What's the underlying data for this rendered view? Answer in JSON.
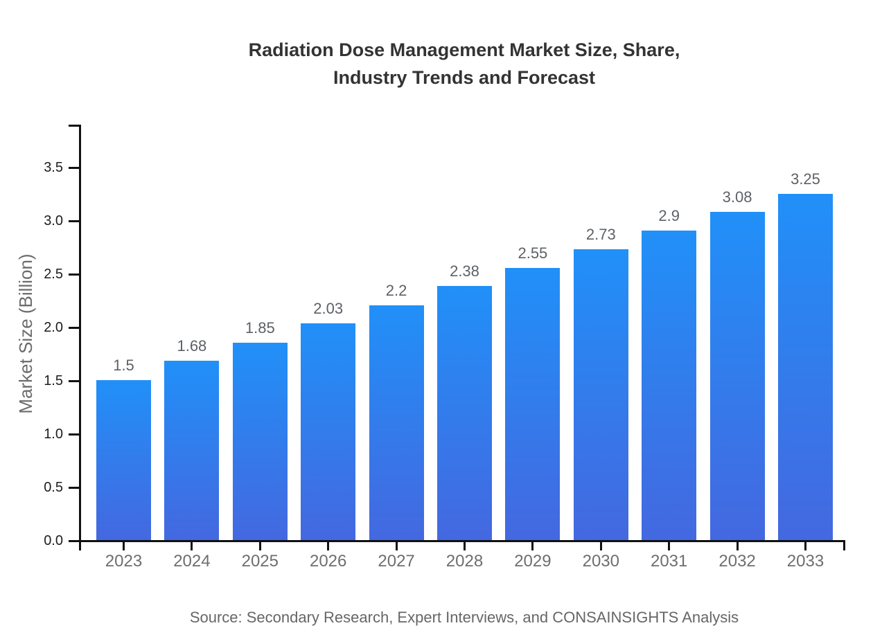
{
  "header": {
    "title_line1": "Radiation Dose Management Market Size, Share,",
    "title_line2": "Industry Trends and Forecast"
  },
  "footer": {
    "source": "Source: Secondary Research, Expert Interviews, and CONSAINSIGHTS Analysis"
  },
  "chart_data": {
    "type": "bar",
    "title": "Radiation Dose Management Market Size, Share, Industry Trends and Forecast",
    "categories": [
      "2023",
      "2024",
      "2025",
      "2026",
      "2027",
      "2028",
      "2029",
      "2030",
      "2031",
      "2032",
      "2033"
    ],
    "values": [
      1.5,
      1.68,
      1.85,
      2.03,
      2.2,
      2.38,
      2.55,
      2.73,
      2.9,
      3.08,
      3.25
    ],
    "value_labels": [
      "1.5",
      "1.68",
      "1.85",
      "2.03",
      "2.2",
      "2.38",
      "2.55",
      "2.73",
      "2.9",
      "3.08",
      "3.25"
    ],
    "xlabel": "",
    "ylabel": "Market Size (Billion)",
    "ylim": [
      0,
      3.9
    ],
    "yticks": [
      0.0,
      0.5,
      1.0,
      1.5,
      2.0,
      2.5,
      3.0,
      3.5
    ],
    "ytick_labels": [
      "0.0",
      "0.5",
      "1.0",
      "1.5",
      "2.0",
      "2.5",
      "3.0",
      "3.5"
    ],
    "grid": false,
    "legend": false,
    "colors": {
      "bar_top": "#2190F8",
      "bar_bottom": "#4468E0",
      "axis": "#111111",
      "ytick_label": "#1c1c1c",
      "xtick_label": "#6e6e6e",
      "value_label": "#5d6166",
      "title": "#333333",
      "muted": "#666666"
    }
  }
}
